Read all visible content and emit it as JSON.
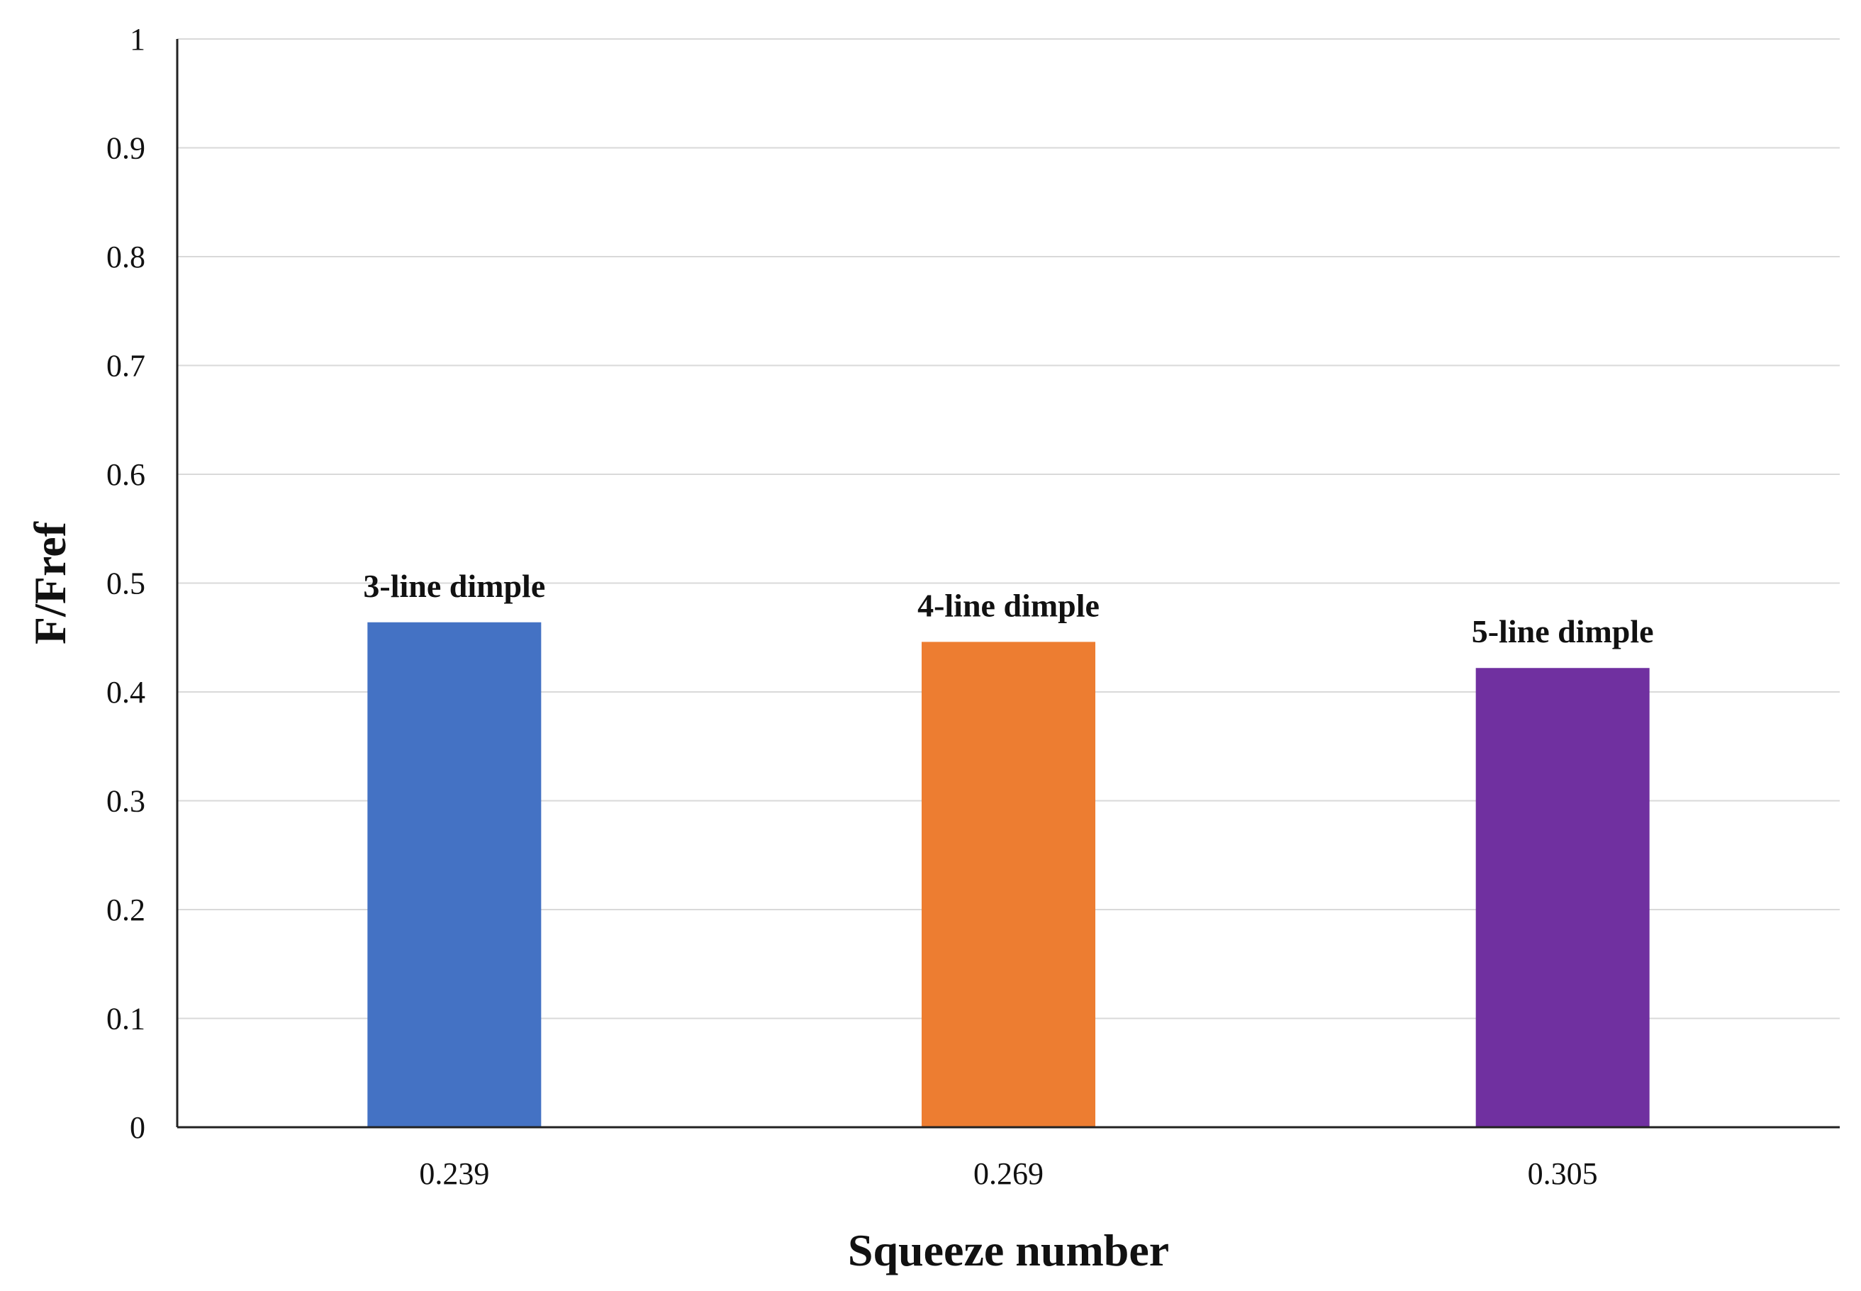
{
  "chart_data": {
    "type": "bar",
    "categories": [
      "0.239",
      "0.269",
      "0.305"
    ],
    "values": [
      0.464,
      0.446,
      0.422
    ],
    "bar_labels": [
      "3-line dimple",
      "4-line dimple",
      "5-line dimple"
    ],
    "bar_colors": [
      "#4472C4",
      "#ED7D31",
      "#7030A0"
    ],
    "title": "",
    "xlabel": "Squeeze number",
    "ylabel": "F/Fref",
    "ylim": [
      0,
      1
    ],
    "yticks": [
      "0",
      "0.1",
      "0.2",
      "0.3",
      "0.4",
      "0.5",
      "0.6",
      "0.7",
      "0.8",
      "0.9",
      "1"
    ],
    "grid": true,
    "legend": "none"
  }
}
